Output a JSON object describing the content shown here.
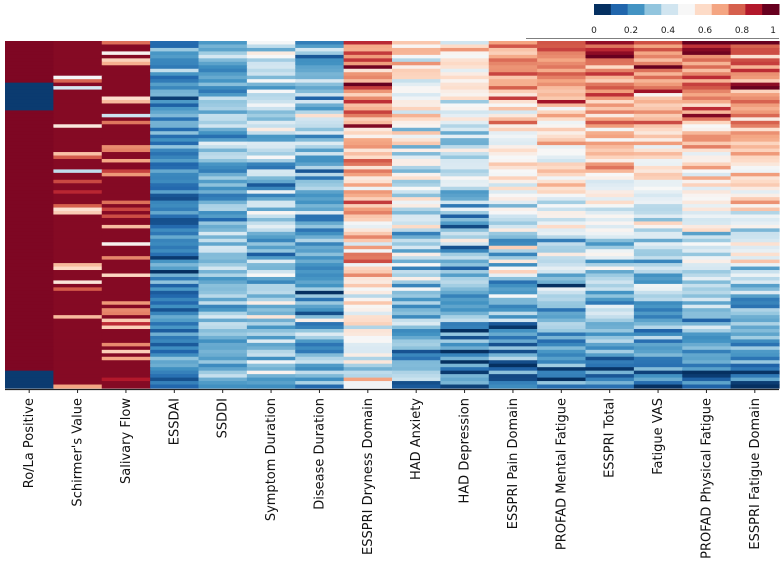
{
  "chart_data": {
    "type": "heatmap",
    "title": "",
    "xlabel": "",
    "ylabel": "",
    "rows": 100,
    "row_labels_shown": false,
    "columns": [
      "Ro/La Positive",
      "Schirmer's Value",
      "Salivary Flow",
      "ESSDAI",
      "SSDDI",
      "Symptom Duration",
      "Disease Duration",
      "ESSPRI Dryness Domain",
      "HAD Anxiety",
      "HAD Depression",
      "ESSPRI Pain Domain",
      "PROFAD Mental Fatigue",
      "ESSPRI Total",
      "Fatigue VAS",
      "PROFAD Physical Fatigue",
      "ESSPRI Fatigue Domain"
    ],
    "column_profile": [
      {
        "name": "Ro/La Positive",
        "mean": 0.92,
        "spread": 0.05,
        "trend": 0.0,
        "note": "mostly 1, short blocks of 0 near top and bottom"
      },
      {
        "name": "Schirmer's Value",
        "mean": 0.84,
        "spread": 0.18,
        "trend": 0.0
      },
      {
        "name": "Salivary Flow",
        "mean": 0.88,
        "spread": 0.16,
        "trend": 0.0
      },
      {
        "name": "ESSDAI",
        "mean": 0.18,
        "spread": 0.14,
        "trend": 0.0
      },
      {
        "name": "SSDDI",
        "mean": 0.26,
        "spread": 0.18,
        "trend": 0.0
      },
      {
        "name": "Symptom Duration",
        "mean": 0.33,
        "spread": 0.22,
        "trend": -0.1
      },
      {
        "name": "Disease Duration",
        "mean": 0.28,
        "spread": 0.2,
        "trend": -0.05
      },
      {
        "name": "ESSPRI Dryness Domain",
        "mean": 0.62,
        "spread": 0.25,
        "trend": -0.3
      },
      {
        "name": "HAD Anxiety",
        "mean": 0.38,
        "spread": 0.22,
        "trend": -0.4
      },
      {
        "name": "HAD Depression",
        "mean": 0.32,
        "spread": 0.22,
        "trend": -0.4
      },
      {
        "name": "ESSPRI Pain Domain",
        "mean": 0.42,
        "spread": 0.22,
        "trend": -0.65
      },
      {
        "name": "PROFAD Mental Fatigue",
        "mean": 0.45,
        "spread": 0.22,
        "trend": -0.65
      },
      {
        "name": "ESSPRI Total",
        "mean": 0.48,
        "spread": 0.2,
        "trend": -0.7
      },
      {
        "name": "Fatigue VAS",
        "mean": 0.45,
        "spread": 0.2,
        "trend": -0.7
      },
      {
        "name": "PROFAD Physical Fatigue",
        "mean": 0.5,
        "spread": 0.2,
        "trend": -0.75
      },
      {
        "name": "ESSPRI Fatigue Domain",
        "mean": 0.5,
        "spread": 0.2,
        "trend": -0.75
      }
    ],
    "colorbar": {
      "range": [
        0,
        1
      ],
      "tick_values": [
        0,
        0.2,
        0.4,
        0.6,
        0.8,
        1
      ],
      "tick_labels": [
        "0",
        "0.2",
        "0.4",
        "0.6",
        "0.8",
        "1"
      ],
      "colors": [
        "#053061",
        "#2166ac",
        "#4393c3",
        "#92c5de",
        "#d1e5f0",
        "#f7f7f7",
        "#fddbc7",
        "#f4a582",
        "#d6604d",
        "#b2182b",
        "#67001f"
      ]
    },
    "legend_position": "top-right"
  }
}
